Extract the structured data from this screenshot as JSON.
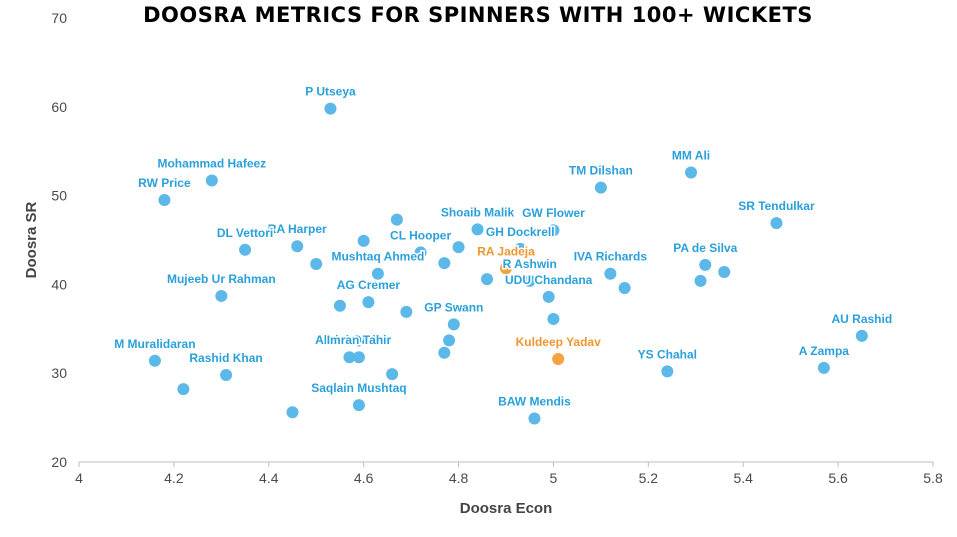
{
  "chart_data": {
    "type": "scatter",
    "title": "DOOSRA METRICS FOR SPINNERS WITH 100+ WICKETS",
    "xlabel": "Doosra Econ",
    "ylabel": "Doosra SR",
    "xlim": [
      4,
      5.8
    ],
    "ylim": [
      20,
      70
    ],
    "xticks": [
      4,
      4.2,
      4.4,
      4.6,
      4.8,
      5,
      5.2,
      5.4,
      5.6,
      5.8
    ],
    "yticks": [
      20,
      30,
      40,
      50,
      60,
      70
    ],
    "grid": false,
    "colors": {
      "default": "#5bb8e8",
      "highlight": "#f5a241",
      "label_default": "#2aa0db",
      "label_highlight": "#f0962e"
    },
    "points": [
      {
        "name": "P Utseya",
        "x": 4.53,
        "y": 59.8
      },
      {
        "name": "Mohammad Hafeez",
        "x": 4.28,
        "y": 51.7
      },
      {
        "name": "RW Price",
        "x": 4.18,
        "y": 49.5
      },
      {
        "name": "MM Ali",
        "x": 5.29,
        "y": 52.6
      },
      {
        "name": "TM Dilshan",
        "x": 5.1,
        "y": 50.9
      },
      {
        "name": "SR Tendulkar",
        "x": 5.47,
        "y": 46.9
      },
      {
        "name": "Shoaib Malik",
        "x": 4.84,
        "y": 46.2
      },
      {
        "name": "GW Flower",
        "x": 5.0,
        "y": 46.1
      },
      {
        "name": "GH Dockrell",
        "x": 4.93,
        "y": 44.0
      },
      {
        "name": "RA Harper",
        "x": 4.46,
        "y": 44.3
      },
      {
        "name": "CL Hooper",
        "x": 4.72,
        "y": 43.6
      },
      {
        "name": "DL Vettori",
        "x": 4.35,
        "y": 43.9
      },
      {
        "name": "Mushtaq Ahmed",
        "x": 4.63,
        "y": 41.2
      },
      {
        "name": "RA Jadeja",
        "x": 4.9,
        "y": 41.8,
        "highlight": true
      },
      {
        "name": "PA de Silva",
        "x": 5.32,
        "y": 42.2
      },
      {
        "name": "Mujeeb Ur Rahman",
        "x": 4.3,
        "y": 38.7
      },
      {
        "name": "R Ashwin",
        "x": 4.95,
        "y": 40.4
      },
      {
        "name": "IVA Richards",
        "x": 5.12,
        "y": 41.2
      },
      {
        "name": "AG Cremer",
        "x": 4.61,
        "y": 38.0
      },
      {
        "name": "UDU Chandana",
        "x": 4.99,
        "y": 38.6
      },
      {
        "name": "GP Swann",
        "x": 4.79,
        "y": 35.5
      },
      {
        "name": "Abdul Qadir",
        "x": 4.57,
        "y": 31.8
      },
      {
        "name": "Imran Tahir",
        "x": 4.59,
        "y": 31.8
      },
      {
        "name": "Kuldeep Yadav",
        "x": 5.01,
        "y": 31.6,
        "highlight": true
      },
      {
        "name": "M Muralidaran",
        "x": 4.16,
        "y": 31.4
      },
      {
        "name": "Rashid Khan",
        "x": 4.31,
        "y": 29.8
      },
      {
        "name": "YS Chahal",
        "x": 5.24,
        "y": 30.2
      },
      {
        "name": "AU Rashid",
        "x": 5.65,
        "y": 34.2
      },
      {
        "name": "A Zampa",
        "x": 5.57,
        "y": 30.6
      },
      {
        "name": "Saqlain Mushtaq",
        "x": 4.59,
        "y": 26.4
      },
      {
        "name": "BAW Mendis",
        "x": 4.96,
        "y": 24.9
      },
      {
        "name": "",
        "x": 4.67,
        "y": 47.3
      },
      {
        "name": "",
        "x": 4.6,
        "y": 44.9
      },
      {
        "name": "",
        "x": 4.8,
        "y": 44.2
      },
      {
        "name": "",
        "x": 4.77,
        "y": 42.4
      },
      {
        "name": "",
        "x": 4.5,
        "y": 42.3
      },
      {
        "name": "",
        "x": 4.86,
        "y": 40.6
      },
      {
        "name": "",
        "x": 5.15,
        "y": 39.6
      },
      {
        "name": "",
        "x": 5.31,
        "y": 40.4
      },
      {
        "name": "",
        "x": 5.36,
        "y": 41.4
      },
      {
        "name": "",
        "x": 4.55,
        "y": 37.6
      },
      {
        "name": "",
        "x": 4.69,
        "y": 36.9
      },
      {
        "name": "",
        "x": 5.0,
        "y": 36.1
      },
      {
        "name": "",
        "x": 4.78,
        "y": 33.7
      },
      {
        "name": "",
        "x": 4.77,
        "y": 32.3
      },
      {
        "name": "",
        "x": 4.22,
        "y": 28.2
      },
      {
        "name": "",
        "x": 4.66,
        "y": 29.9
      },
      {
        "name": "",
        "x": 4.45,
        "y": 25.6
      }
    ]
  }
}
